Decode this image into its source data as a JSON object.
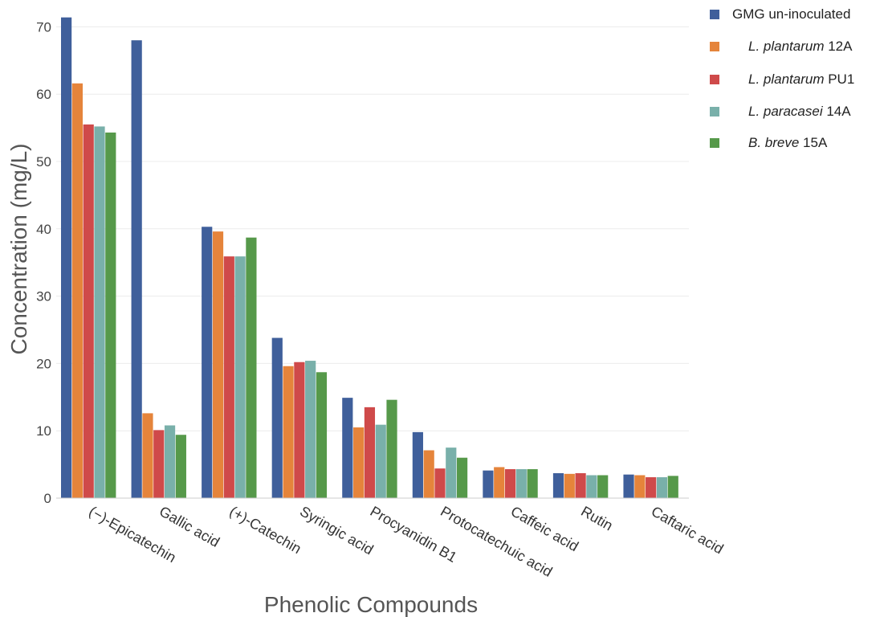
{
  "chart_data": {
    "type": "bar",
    "title": "",
    "xlabel": "Phenolic Compounds",
    "ylabel": "Concentration (mg/L)",
    "ylim": [
      0,
      72
    ],
    "yticks": [
      0,
      10,
      20,
      30,
      40,
      50,
      60,
      70
    ],
    "grid": "horizontal",
    "legend_position": "top-right",
    "categories": [
      "(−)-Epicatechin",
      "Gallic acid",
      "(+)-Catechin",
      "Syringic acid",
      "Procyanidin B1",
      "Protocatechuic acid",
      "Caffeic acid",
      "Rutin",
      "Caftaric acid"
    ],
    "series": [
      {
        "name": "GMG un-inoculated",
        "name_italic": "",
        "name_suffix": "GMG un-inoculated",
        "color": "#3f5f9b",
        "values": [
          71.4,
          68.0,
          40.3,
          23.8,
          14.9,
          9.8,
          4.1,
          3.7,
          3.5
        ]
      },
      {
        "name": "L. plantarum 12A",
        "name_italic": "L. plantarum",
        "name_suffix": " 12A",
        "color": "#e5843b",
        "values": [
          61.6,
          12.6,
          39.6,
          19.6,
          10.5,
          7.1,
          4.6,
          3.6,
          3.4
        ]
      },
      {
        "name": "L. plantarum PU1",
        "name_italic": "L. plantarum",
        "name_suffix": " PU1",
        "color": "#cf4a4a",
        "values": [
          55.5,
          10.1,
          35.9,
          20.2,
          13.5,
          4.4,
          4.3,
          3.7,
          3.1
        ]
      },
      {
        "name": "L. paracasei 14A",
        "name_italic": "L. paracasei",
        "name_suffix": " 14A",
        "color": "#79b0aa",
        "values": [
          55.2,
          10.8,
          35.9,
          20.4,
          10.9,
          7.5,
          4.3,
          3.4,
          3.1
        ]
      },
      {
        "name": "B. breve 15A",
        "name_italic": "B. breve",
        "name_suffix": " 15A",
        "color": "#56994a",
        "values": [
          54.3,
          9.4,
          38.7,
          18.7,
          14.6,
          6.0,
          4.3,
          3.4,
          3.3
        ]
      }
    ]
  }
}
